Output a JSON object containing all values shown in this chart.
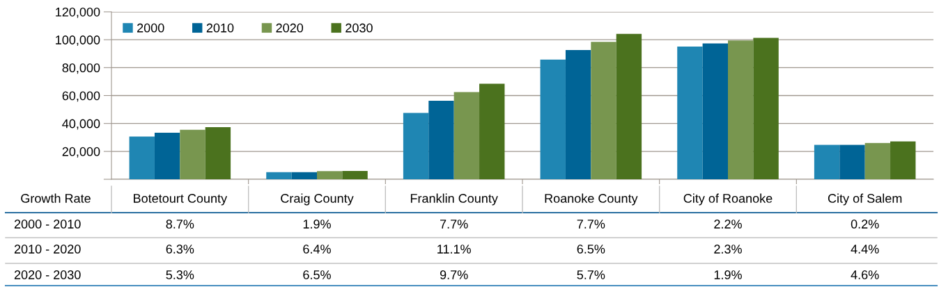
{
  "chart_data": {
    "type": "bar",
    "categories": [
      "Botetourt County",
      "Craig County",
      "Franklin County",
      "Roanoke County",
      "City of Roanoke",
      "City of Salem"
    ],
    "series": [
      {
        "name": "2000",
        "color": "#1f86b3",
        "values": [
          30600,
          5100,
          47500,
          85800,
          95100,
          24700
        ]
      },
      {
        "name": "2010",
        "color": "#006496",
        "values": [
          33300,
          5100,
          56300,
          92600,
          97300,
          24700
        ]
      },
      {
        "name": "2020",
        "color": "#78964f",
        "values": [
          35500,
          5800,
          62500,
          98500,
          99400,
          26000
        ]
      },
      {
        "name": "2030",
        "color": "#4b721e",
        "values": [
          37300,
          6000,
          68500,
          104200,
          101300,
          27100
        ]
      }
    ],
    "ylim": [
      0,
      120000
    ],
    "yticks": [
      {
        "value": 0,
        "label": null
      },
      {
        "value": 20000,
        "label": "20,000"
      },
      {
        "value": 40000,
        "label": "40,000"
      },
      {
        "value": 60000,
        "label": "60,000"
      },
      {
        "value": 80000,
        "label": "80,000"
      },
      {
        "value": 100000,
        "label": "100,000"
      },
      {
        "value": 120000,
        "label": "120,000"
      }
    ],
    "grid": "y",
    "legend": "top left",
    "annotations": [
      "Growth Rate",
      "2000 - 2010",
      "8.7%",
      "1.9%",
      "7.7%",
      "7.7%",
      "2.2%",
      "0.2%",
      "2010 - 2020",
      "6.3%",
      "6.4%",
      "11.1%",
      "6.5%",
      "2.3%",
      "4.4%",
      "2020 - 2030",
      "5.3%",
      "6.5%",
      "9.7%",
      "5.7%",
      "1.9%",
      "4.6%"
    ]
  }
}
